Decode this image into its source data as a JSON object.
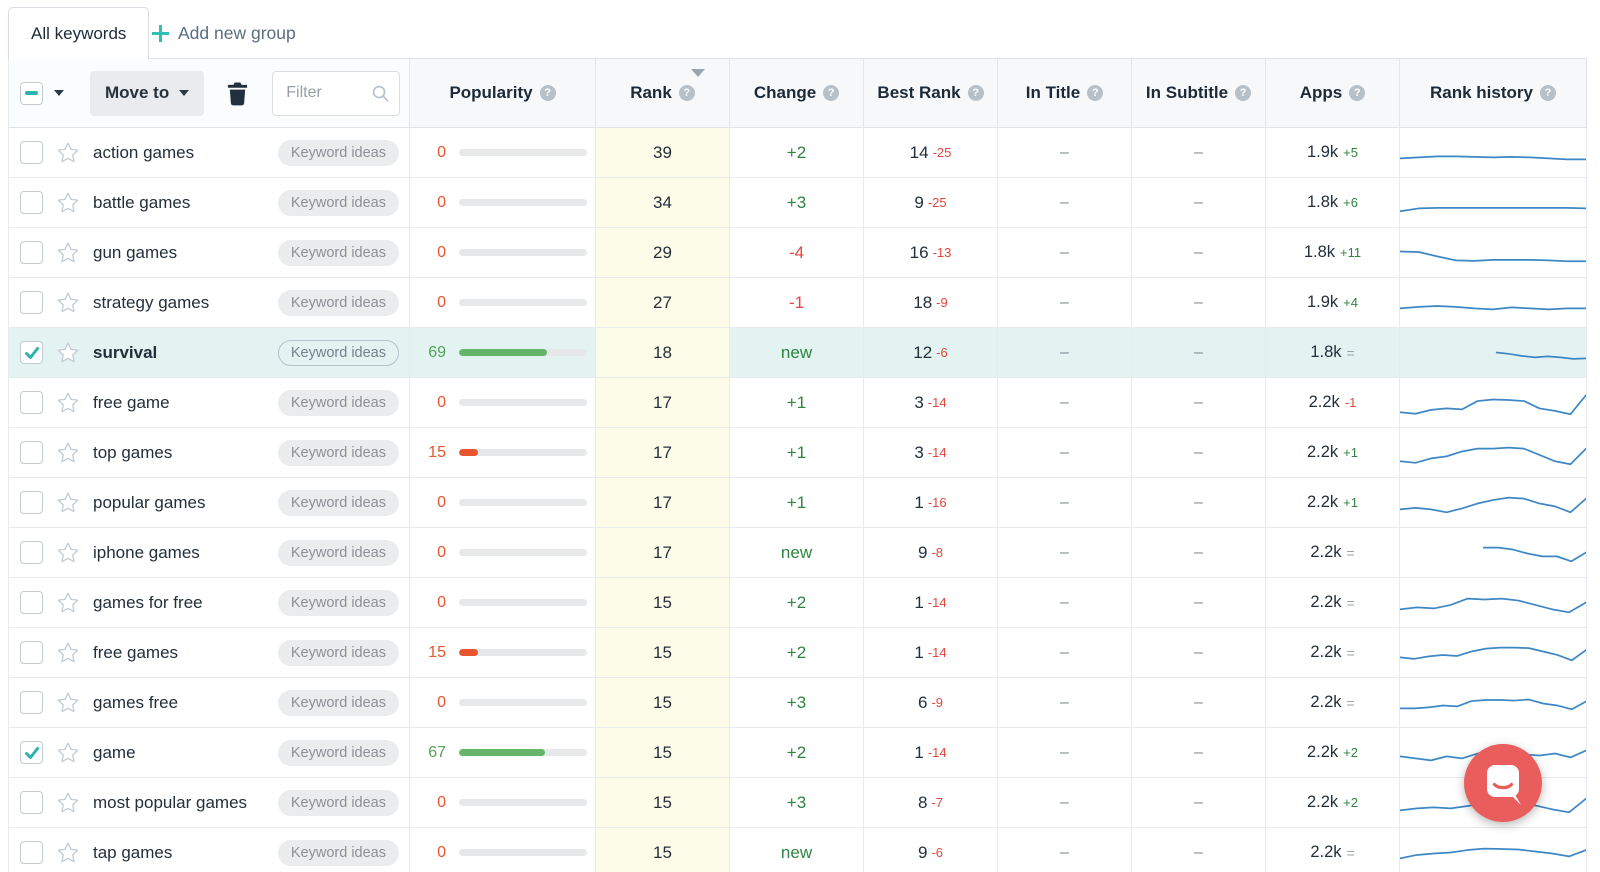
{
  "tabs": {
    "active_label": "All keywords",
    "add_group_label": "Add new group"
  },
  "toolbar": {
    "move_to_label": "Move to",
    "filter_placeholder": "Filter"
  },
  "columns": [
    {
      "label": "Popularity"
    },
    {
      "label": "Rank"
    },
    {
      "label": "Change"
    },
    {
      "label": "Best Rank"
    },
    {
      "label": "In Title"
    },
    {
      "label": "In Subtitle"
    },
    {
      "label": "Apps"
    },
    {
      "label": "Rank history"
    }
  ],
  "badge_label": "Keyword ideas",
  "icons": {
    "plus-icon": "+",
    "help-icon": "?",
    "search-icon": "magnifier",
    "trash-icon": "trash-can",
    "chevron-down-icon": "caret-down",
    "sort-desc-icon": "triangle-down",
    "star-icon": "star-outline",
    "check-icon": "checkmark",
    "minus-icon": "indeterminate-dash",
    "chat-icon": "speech-bubble-smile"
  },
  "colors": {
    "accent_teal": "#2cb5ae",
    "positive_green": "#2e8540",
    "negative_red": "#e1473d",
    "popularity_orange": "#e8542e",
    "popularity_green": "#64b46a",
    "rank_cell_yellow": "#fdfce9",
    "selected_row_teal": "#e2f3f1",
    "sparkline_blue": "#3d87c5",
    "chat_red": "#e95d5d"
  },
  "rows": [
    {
      "keyword": "action games",
      "checked": false,
      "selected": false,
      "popularity": 0,
      "rank": "39",
      "change": "+2",
      "change_type": "up",
      "best_rank": "14",
      "best_delta": "-25",
      "in_title": "–",
      "in_subtitle": "–",
      "apps": "1.9k",
      "apps_delta": "+5",
      "apps_delta_type": "up",
      "spark": {
        "start": 0,
        "points": [
          0.62,
          0.6,
          0.58,
          0.58,
          0.59,
          0.6,
          0.59,
          0.6,
          0.62,
          0.64,
          0.64
        ]
      }
    },
    {
      "keyword": "battle games",
      "checked": false,
      "selected": false,
      "popularity": 0,
      "rank": "34",
      "change": "+3",
      "change_type": "up",
      "best_rank": "9",
      "best_delta": "-25",
      "in_title": "–",
      "in_subtitle": "–",
      "apps": "1.8k",
      "apps_delta": "+6",
      "apps_delta_type": "up",
      "spark": {
        "start": 0,
        "points": [
          0.68,
          0.62,
          0.61,
          0.61,
          0.61,
          0.61,
          0.61,
          0.61,
          0.61,
          0.61,
          0.62
        ]
      }
    },
    {
      "keyword": "gun games",
      "checked": false,
      "selected": false,
      "popularity": 0,
      "rank": "29",
      "change": "-4",
      "change_type": "down",
      "best_rank": "16",
      "best_delta": "-13",
      "in_title": "–",
      "in_subtitle": "–",
      "apps": "1.8k",
      "apps_delta": "+11",
      "apps_delta_type": "up",
      "spark": {
        "start": 0,
        "points": [
          0.48,
          0.49,
          0.58,
          0.66,
          0.67,
          0.65,
          0.65,
          0.65,
          0.66,
          0.68,
          0.68
        ]
      }
    },
    {
      "keyword": "strategy games",
      "checked": false,
      "selected": false,
      "popularity": 0,
      "rank": "27",
      "change": "-1",
      "change_type": "down",
      "best_rank": "18",
      "best_delta": "-9",
      "in_title": "–",
      "in_subtitle": "–",
      "apps": "1.9k",
      "apps_delta": "+4",
      "apps_delta_type": "up",
      "spark": {
        "start": 0,
        "points": [
          0.62,
          0.59,
          0.57,
          0.59,
          0.62,
          0.64,
          0.6,
          0.62,
          0.64,
          0.62,
          0.62
        ]
      }
    },
    {
      "keyword": "survival",
      "checked": true,
      "selected": true,
      "popularity": 69,
      "rank": "18",
      "change": "new",
      "change_type": "new",
      "best_rank": "12",
      "best_delta": "-6",
      "in_title": "–",
      "in_subtitle": "–",
      "apps": "1.8k",
      "apps_delta": "=",
      "apps_delta_type": "eq",
      "spark": {
        "start": 0.52,
        "points": [
          0.5,
          0.53,
          0.57,
          0.6,
          0.58,
          0.6,
          0.63,
          0.62
        ]
      }
    },
    {
      "keyword": "free game",
      "checked": false,
      "selected": false,
      "popularity": 0,
      "rank": "17",
      "change": "+1",
      "change_type": "up",
      "best_rank": "3",
      "best_delta": "-14",
      "in_title": "–",
      "in_subtitle": "–",
      "apps": "2.2k",
      "apps_delta": "-1",
      "apps_delta_type": "down",
      "spark": {
        "start": 0,
        "points": [
          0.7,
          0.73,
          0.65,
          0.62,
          0.64,
          0.47,
          0.44,
          0.45,
          0.47,
          0.62,
          0.67,
          0.74,
          0.35
        ]
      }
    },
    {
      "keyword": "top games",
      "checked": false,
      "selected": false,
      "popularity": 15,
      "rank": "17",
      "change": "+1",
      "change_type": "up",
      "best_rank": "3",
      "best_delta": "-14",
      "in_title": "–",
      "in_subtitle": "–",
      "apps": "2.2k",
      "apps_delta": "+1",
      "apps_delta_type": "up",
      "spark": {
        "start": 0,
        "points": [
          0.68,
          0.71,
          0.62,
          0.58,
          0.48,
          0.42,
          0.42,
          0.4,
          0.42,
          0.55,
          0.68,
          0.74,
          0.42
        ]
      }
    },
    {
      "keyword": "popular games",
      "checked": false,
      "selected": false,
      "popularity": 0,
      "rank": "17",
      "change": "+1",
      "change_type": "up",
      "best_rank": "1",
      "best_delta": "-16",
      "in_title": "–",
      "in_subtitle": "–",
      "apps": "2.2k",
      "apps_delta": "+1",
      "apps_delta_type": "up",
      "spark": {
        "start": 0,
        "points": [
          0.64,
          0.61,
          0.64,
          0.7,
          0.62,
          0.52,
          0.45,
          0.4,
          0.42,
          0.52,
          0.58,
          0.7,
          0.42
        ]
      }
    },
    {
      "keyword": "iphone games",
      "checked": false,
      "selected": false,
      "popularity": 0,
      "rank": "17",
      "change": "new",
      "change_type": "new",
      "best_rank": "9",
      "best_delta": "-8",
      "in_title": "–",
      "in_subtitle": "–",
      "apps": "2.2k",
      "apps_delta": "=",
      "apps_delta_type": "eq",
      "spark": {
        "start": 0.45,
        "points": [
          0.4,
          0.4,
          0.44,
          0.52,
          0.58,
          0.58,
          0.68,
          0.5
        ]
      }
    },
    {
      "keyword": "games for free",
      "checked": false,
      "selected": false,
      "popularity": 0,
      "rank": "15",
      "change": "+2",
      "change_type": "up",
      "best_rank": "1",
      "best_delta": "-14",
      "in_title": "–",
      "in_subtitle": "–",
      "apps": "2.2k",
      "apps_delta": "=",
      "apps_delta_type": "eq",
      "spark": {
        "start": 0,
        "points": [
          0.64,
          0.6,
          0.62,
          0.55,
          0.42,
          0.44,
          0.42,
          0.46,
          0.55,
          0.64,
          0.7,
          0.5
        ]
      }
    },
    {
      "keyword": "free games",
      "checked": false,
      "selected": false,
      "popularity": 15,
      "rank": "15",
      "change": "+2",
      "change_type": "up",
      "best_rank": "1",
      "best_delta": "-14",
      "in_title": "–",
      "in_subtitle": "–",
      "apps": "2.2k",
      "apps_delta": "=",
      "apps_delta_type": "eq",
      "spark": {
        "start": 0,
        "points": [
          0.6,
          0.63,
          0.58,
          0.55,
          0.57,
          0.48,
          0.42,
          0.4,
          0.4,
          0.41,
          0.48,
          0.55,
          0.66,
          0.45
        ]
      }
    },
    {
      "keyword": "games free",
      "checked": false,
      "selected": false,
      "popularity": 0,
      "rank": "15",
      "change": "+3",
      "change_type": "up",
      "best_rank": "6",
      "best_delta": "-9",
      "in_title": "–",
      "in_subtitle": "–",
      "apps": "2.2k",
      "apps_delta": "=",
      "apps_delta_type": "eq",
      "spark": {
        "start": 0,
        "points": [
          0.62,
          0.62,
          0.6,
          0.56,
          0.58,
          0.47,
          0.45,
          0.45,
          0.46,
          0.44,
          0.52,
          0.56,
          0.64,
          0.48
        ]
      }
    },
    {
      "keyword": "game",
      "checked": true,
      "selected": false,
      "popularity": 67,
      "rank": "15",
      "change": "+2",
      "change_type": "up",
      "best_rank": "1",
      "best_delta": "-14",
      "in_title": "–",
      "in_subtitle": "–",
      "apps": "2.2k",
      "apps_delta": "+2",
      "apps_delta_type": "up",
      "spark": {
        "start": 0,
        "points": [
          0.58,
          0.62,
          0.66,
          0.58,
          0.62,
          0.52,
          0.5,
          0.52,
          0.54,
          0.56,
          0.52,
          0.6,
          0.46
        ]
      }
    },
    {
      "keyword": "most popular games",
      "checked": false,
      "selected": false,
      "popularity": 0,
      "rank": "15",
      "change": "+3",
      "change_type": "up",
      "best_rank": "8",
      "best_delta": "-7",
      "in_title": "–",
      "in_subtitle": "–",
      "apps": "2.2k",
      "apps_delta": "+2",
      "apps_delta_type": "up",
      "spark": {
        "start": 0,
        "points": [
          0.66,
          0.62,
          0.6,
          0.62,
          0.57,
          0.52,
          0.54,
          0.52,
          0.56,
          0.64,
          0.7,
          0.42
        ]
      }
    },
    {
      "keyword": "tap games",
      "checked": false,
      "selected": false,
      "popularity": 0,
      "rank": "15",
      "change": "new",
      "change_type": "new",
      "best_rank": "9",
      "best_delta": "-6",
      "in_title": "–",
      "in_subtitle": "–",
      "apps": "2.2k",
      "apps_delta": "=",
      "apps_delta_type": "eq",
      "spark": {
        "start": 0,
        "points": [
          0.62,
          0.55,
          0.52,
          0.5,
          0.45,
          0.42,
          0.43,
          0.44,
          0.48,
          0.52,
          0.58,
          0.45
        ]
      }
    }
  ]
}
